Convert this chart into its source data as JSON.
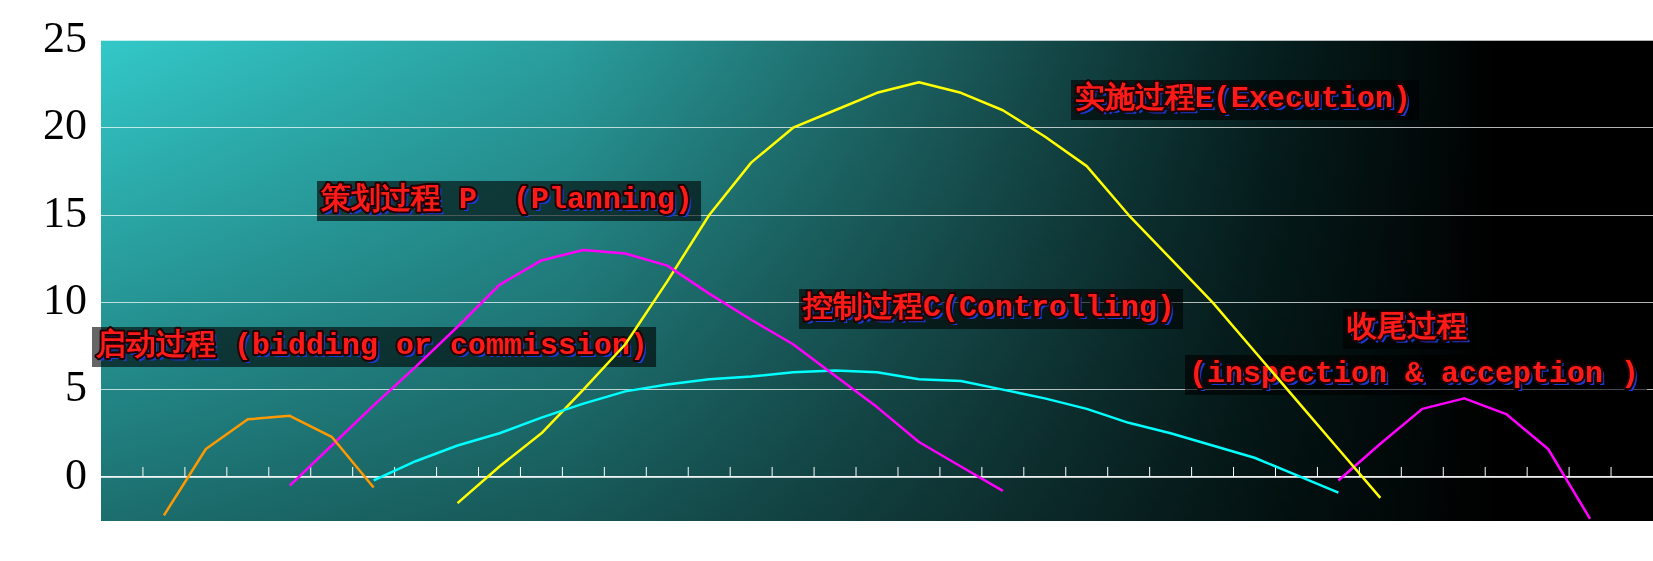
{
  "chart_data": {
    "type": "line",
    "categories": [
      null,
      null,
      null,
      null,
      null,
      null,
      null,
      null,
      null,
      null,
      null,
      null,
      null,
      null,
      null,
      null,
      null,
      null,
      null,
      null,
      null,
      null,
      null,
      null,
      null,
      null,
      null,
      null,
      null,
      null,
      null,
      null,
      null,
      null,
      null,
      null,
      null
    ],
    "series": [
      {
        "color": "#ff9900",
        "values": [
          null,
          -2.2,
          1.6,
          3.3,
          3.5,
          2.3,
          -0.6,
          null,
          null,
          null,
          null,
          null,
          null,
          null,
          null,
          null,
          null,
          null,
          null,
          null,
          null,
          null,
          null,
          null,
          null,
          null,
          null,
          null,
          null,
          null,
          null,
          null,
          null,
          null,
          null,
          null,
          null
        ]
      },
      {
        "color": "#ff00ff",
        "values": [
          null,
          null,
          null,
          null,
          -0.5,
          1.8,
          4.1,
          6.3,
          8.6,
          11.0,
          12.4,
          13.0,
          12.8,
          12.1,
          10.5,
          9.0,
          7.6,
          5.8,
          4.0,
          2.0,
          0.6,
          -0.8,
          null,
          null,
          null,
          null,
          null,
          null,
          null,
          null,
          null,
          null,
          null,
          null,
          null,
          null,
          null
        ]
      },
      {
        "color": "#00ffff",
        "values": [
          null,
          null,
          null,
          null,
          null,
          null,
          -0.2,
          0.9,
          1.8,
          2.5,
          3.4,
          4.2,
          4.9,
          5.3,
          5.6,
          5.75,
          6.0,
          6.1,
          6.0,
          5.6,
          5.5,
          5.0,
          4.5,
          3.9,
          3.1,
          2.5,
          1.8,
          1.1,
          0.1,
          -0.9,
          null,
          null,
          null,
          null,
          null,
          null,
          null
        ]
      },
      {
        "color": "#ffff00",
        "values": [
          null,
          null,
          null,
          null,
          null,
          null,
          null,
          null,
          -1.5,
          0.6,
          2.5,
          5.0,
          7.6,
          11.2,
          15.0,
          18.0,
          20.0,
          21.0,
          22.0,
          22.6,
          22.0,
          21.0,
          19.5,
          17.8,
          15.0,
          12.5,
          10.0,
          7.2,
          4.4,
          1.6,
          -1.2,
          null,
          null,
          null,
          null,
          null,
          null
        ]
      },
      {
        "color": "#ff00ff",
        "values": [
          null,
          null,
          null,
          null,
          null,
          null,
          null,
          null,
          null,
          null,
          null,
          null,
          null,
          null,
          null,
          null,
          null,
          null,
          null,
          null,
          null,
          null,
          null,
          null,
          null,
          null,
          null,
          null,
          null,
          -0.2,
          1.9,
          3.9,
          4.5,
          3.6,
          1.6,
          -2.4,
          null
        ]
      }
    ],
    "ylim": [
      -2.5,
      25
    ],
    "yticks": [
      0,
      5,
      10,
      15,
      20,
      25
    ],
    "grid": "y",
    "legend": false,
    "marker": "none",
    "line_style": "solid",
    "annotations": [
      "启动过程 (bidding or commission)",
      "策划过程 P  (Planning)",
      "控制过程C(Controlling)",
      "实施过程E(Execution)",
      "收尾过程",
      "(inspection & acception )"
    ]
  }
}
